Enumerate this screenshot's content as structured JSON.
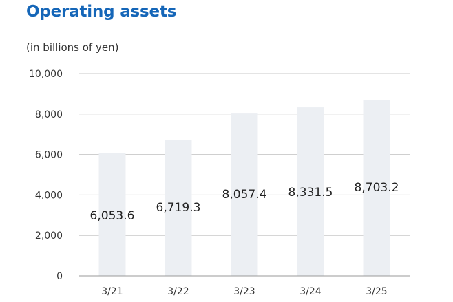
{
  "chart_data": {
    "type": "bar",
    "title": "Operating assets",
    "unit_label": "(in billions of yen)",
    "categories": [
      "3/21",
      "3/22",
      "3/23",
      "3/24",
      "3/25"
    ],
    "values": [
      6053.6,
      6719.3,
      8057.4,
      8331.5,
      8703.2
    ],
    "value_labels": [
      "6,053.6",
      "6,719.3",
      "8,057.4",
      "8,331.5",
      "8,703.2"
    ],
    "ylim": [
      0,
      10000
    ],
    "yticks": [
      0,
      2000,
      4000,
      6000,
      8000,
      10000
    ],
    "ytick_labels": [
      "0",
      "2,000",
      "4,000",
      "6,000",
      "8,000",
      "10,000"
    ],
    "grid": true,
    "colors": {
      "bar": "#eceff3",
      "grid": "#c8c8c8",
      "title": "#1566b8"
    }
  }
}
